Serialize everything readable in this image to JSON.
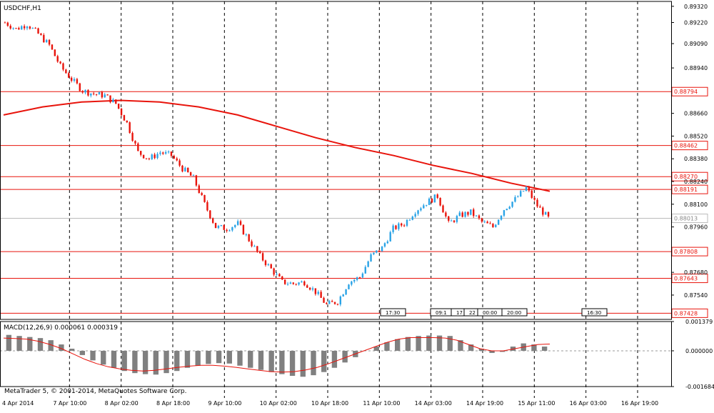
{
  "chart_data": [
    {
      "type": "candlestick",
      "title": "USDCHF,H1",
      "symbol": "USDCHF",
      "timeframe": "H1",
      "ylim": [
        0.8739,
        0.8935
      ],
      "y_ticks": [
        "0.89320",
        "0.89220",
        "0.89090",
        "0.88940",
        "0.88660",
        "0.88520",
        "0.88380",
        "0.88240",
        "0.88100",
        "0.87960",
        "0.87680",
        "0.87540"
      ],
      "x_ticks": [
        "4 Apr 2014",
        "7 Apr 10:00",
        "8 Apr 02:00",
        "8 Apr 18:00",
        "9 Apr 10:00",
        "10 Apr 02:00",
        "10 Apr 18:00",
        "11 Apr 10:00",
        "14 Apr 03:00",
        "14 Apr 19:00",
        "15 Apr 11:00",
        "16 Apr 03:00",
        "16 Apr 19:00"
      ],
      "horizontal_levels": [
        {
          "value": 0.88794,
          "label": "0.88794",
          "color": "#e8140c"
        },
        {
          "value": 0.88462,
          "label": "0.88462",
          "color": "#e8140c"
        },
        {
          "value": 0.8827,
          "label": "0.88270",
          "color": "#e8140c"
        },
        {
          "value": 0.88191,
          "label": "0.88191",
          "color": "#e8140c"
        },
        {
          "value": 0.87808,
          "label": "0.87808",
          "color": "#e8140c"
        },
        {
          "value": 0.87643,
          "label": "0.87643",
          "color": "#e8140c"
        },
        {
          "value": 0.87428,
          "label": "0.87428",
          "color": "#e8140c"
        }
      ],
      "current_price": {
        "value": 0.88013,
        "label": "0.88013",
        "color": "#bbbbbb"
      },
      "moving_average": [
        0.8865,
        0.887,
        0.8873,
        0.8874,
        0.8873,
        0.887,
        0.8865,
        0.8858,
        0.8851,
        0.8845,
        0.884,
        0.8834,
        0.8829,
        0.8823,
        0.8818
      ],
      "close": [
        0.8922,
        0.8918,
        0.8921,
        0.8915,
        0.8908,
        0.8895,
        0.8887,
        0.888,
        0.8878,
        0.8877,
        0.8872,
        0.886,
        0.8842,
        0.8838,
        0.8842,
        0.884,
        0.8832,
        0.8826,
        0.881,
        0.8796,
        0.8795,
        0.8798,
        0.8788,
        0.8778,
        0.877,
        0.8762,
        0.8761,
        0.8762,
        0.8756,
        0.8748,
        0.875,
        0.8762,
        0.8765,
        0.8778,
        0.8783,
        0.8795,
        0.8798,
        0.8806,
        0.8811,
        0.8815,
        0.8798,
        0.8803,
        0.8805,
        0.8799,
        0.8796,
        0.8807,
        0.8813,
        0.882,
        0.8809,
        0.88013
      ],
      "order_labels": [
        "17:30",
        "09:1",
        "17",
        "22",
        "00:00",
        "20:00",
        "16:30"
      ],
      "colors": {
        "bull": "#2aa3e6",
        "bear": "#e8140c",
        "ma": "#e8140c",
        "grid": "#000000",
        "frame": "#000000"
      }
    },
    {
      "type": "bar",
      "title": "MACD(12,26,9) 0.000061 0.000319",
      "name": "MACD",
      "params": "12,26,9",
      "ylim": [
        -0.001684,
        0.001379
      ],
      "y_ticks": [
        "0.001379",
        "0.000000",
        "-0.001684"
      ],
      "histogram": [
        0.00075,
        0.0007,
        0.00065,
        0.0006,
        0.0005,
        0.0003,
        0.0001,
        -0.0002,
        -0.00045,
        -0.00065,
        -0.0008,
        -0.00095,
        -0.00105,
        -0.0011,
        -0.00112,
        -0.00105,
        -0.00095,
        -0.0008,
        -0.0007,
        -0.00062,
        -0.00058,
        -0.0006,
        -0.0007,
        -0.0008,
        -0.0009,
        -0.001,
        -0.0011,
        -0.00118,
        -0.00122,
        -0.00115,
        -0.001,
        -0.0008,
        -0.00055,
        -0.0003,
        0.0,
        0.0002,
        0.0004,
        0.00055,
        0.00065,
        0.0007,
        0.00072,
        0.00072,
        0.0007,
        0.0005,
        0.0003,
        0.0001,
        -0.0001,
        -5e-05,
        0.0002,
        0.00035,
        0.0003,
        0.0002
      ],
      "signal": [
        0.0006,
        0.00058,
        0.00055,
        0.00045,
        0.0003,
        0.0001,
        -0.00015,
        -0.0004,
        -0.0006,
        -0.00075,
        -0.00085,
        -0.00092,
        -0.00095,
        -0.00092,
        -0.00085,
        -0.00078,
        -0.00072,
        -0.00068,
        -0.00068,
        -0.00072,
        -0.00078,
        -0.00085,
        -0.00092,
        -0.00098,
        -0.001,
        -0.00098,
        -0.0009,
        -0.00078,
        -0.0006,
        -0.0004,
        -0.0002,
        0.0,
        0.0002,
        0.0004,
        0.00055,
        0.00062,
        0.00062,
        0.00062,
        0.0006,
        0.0005,
        0.0003,
        0.0001,
        0.0,
        0.0,
        0.0001,
        0.0002,
        0.0003,
        0.00032
      ]
    }
  ],
  "footer": {
    "copyright": "MetaTrader 5, © 2001-2014, MetaQuotes Software Corp."
  }
}
